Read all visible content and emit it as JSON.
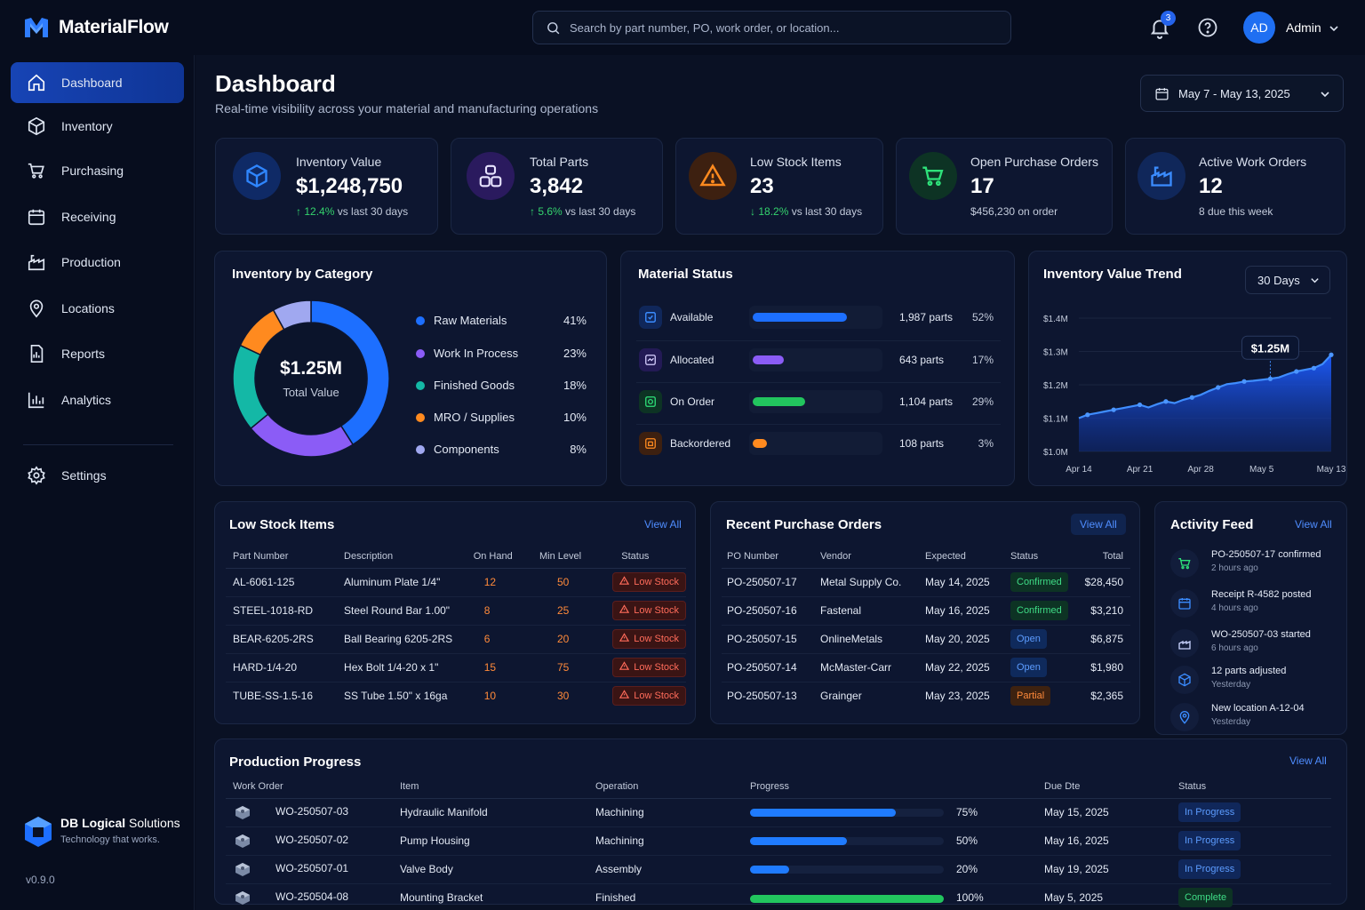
{
  "app": {
    "name": "MaterialFlow"
  },
  "search": {
    "placeholder": "Search by part number, PO, work order, or location..."
  },
  "header": {
    "notifications": "3",
    "avatar_initials": "AD",
    "user_name": "Admin"
  },
  "sidebar": {
    "items": [
      {
        "label": "Dashboard",
        "icon": "home-icon"
      },
      {
        "label": "Inventory",
        "icon": "box-icon"
      },
      {
        "label": "Purchasing",
        "icon": "cart-icon"
      },
      {
        "label": "Receiving",
        "icon": "calendar-icon"
      },
      {
        "label": "Production",
        "icon": "factory-icon"
      },
      {
        "label": "Locations",
        "icon": "pin-icon"
      },
      {
        "label": "Reports",
        "icon": "report-icon"
      },
      {
        "label": "Analytics",
        "icon": "bar-chart-icon"
      },
      {
        "label": "Settings",
        "icon": "gear-icon"
      }
    ],
    "company_name_bold": "DB Logical",
    "company_name_rest": " Solutions",
    "company_tagline": "Technology that works.",
    "version": "v0.9.0"
  },
  "page": {
    "title": "Dashboard",
    "subtitle": "Real-time visibility across your material and manufacturing operations",
    "date_range": "May 7 - May 13, 2025"
  },
  "kpis": [
    {
      "label": "Inventory Value",
      "value": "$1,248,750",
      "delta": "12.4%",
      "delta_text": " vs last 30 days",
      "color": "#1d6fff"
    },
    {
      "label": "Total Parts",
      "value": "3,842",
      "delta": "5.6%",
      "delta_text": " vs last 30 days",
      "color": "#8b5cf6"
    },
    {
      "label": "Low Stock Items",
      "value": "23",
      "delta": "18.2%",
      "delta_text": " vs last 30 days",
      "color": "#ff8a1f"
    },
    {
      "label": "Open Purchase Orders",
      "value": "17",
      "sub": "$456,230 on order",
      "color": "#22c55e"
    },
    {
      "label": "Active Work Orders",
      "value": "12",
      "sub": "8 due this week",
      "color": "#3b82f6"
    }
  ],
  "category": {
    "title": "Inventory by Category",
    "center_value": "$1.25M",
    "center_label": "Total Value",
    "items": [
      {
        "label": "Raw Materials",
        "pct": "41%",
        "value": 41,
        "color": "#1d6fff"
      },
      {
        "label": "Work In Process",
        "pct": "23%",
        "value": 23,
        "color": "#8b5cf6"
      },
      {
        "label": "Finished Goods",
        "pct": "18%",
        "value": 18,
        "color": "#14b8a6"
      },
      {
        "label": "MRO / Supplies",
        "pct": "10%",
        "value": 10,
        "color": "#ff8a1f"
      },
      {
        "label": "Components",
        "pct": "8%",
        "value": 8,
        "color": "#a0a8f0"
      }
    ]
  },
  "material_status": {
    "title": "Material Status",
    "rows": [
      {
        "label": "Available",
        "count": "1,987 parts",
        "pct": "52%",
        "fraction": 0.52,
        "color": "#1d6fff"
      },
      {
        "label": "Allocated",
        "count": "643 parts",
        "pct": "17%",
        "fraction": 0.17,
        "color": "#8b5cf6"
      },
      {
        "label": "On Order",
        "count": "1,104 parts",
        "pct": "29%",
        "fraction": 0.29,
        "color": "#22c55e"
      },
      {
        "label": "Backordered",
        "count": "108 parts",
        "pct": "3%",
        "fraction": 0.03,
        "color": "#ff8a1f"
      }
    ]
  },
  "trend": {
    "title": "Inventory Value Trend",
    "range": "30 Days",
    "callout": "$1.25M"
  },
  "chart_data": {
    "type": "area",
    "x": [
      "Apr 14",
      "Apr 15",
      "Apr 16",
      "Apr 17",
      "Apr 18",
      "Apr 19",
      "Apr 20",
      "Apr 21",
      "Apr 22",
      "Apr 23",
      "Apr 24",
      "Apr 25",
      "Apr 26",
      "Apr 27",
      "Apr 28",
      "Apr 29",
      "Apr 30",
      "May 1",
      "May 2",
      "May 3",
      "May 4",
      "May 5",
      "May 6",
      "May 7",
      "May 8",
      "May 9",
      "May 10",
      "May 11",
      "May 12",
      "May 13"
    ],
    "series": [
      {
        "values": [
          1.1,
          1.11,
          1.115,
          1.12,
          1.125,
          1.13,
          1.135,
          1.14,
          1.132,
          1.142,
          1.15,
          1.145,
          1.155,
          1.162,
          1.17,
          1.182,
          1.192,
          1.202,
          1.205,
          1.21,
          1.212,
          1.215,
          1.218,
          1.222,
          1.232,
          1.24,
          1.245,
          1.25,
          1.262,
          1.29
        ]
      }
    ],
    "xticks": [
      "Apr 14",
      "Apr 21",
      "Apr 28",
      "May 5",
      "May 13"
    ],
    "yticks": [
      "$1.0M",
      "$1.1M",
      "$1.2M",
      "$1.3M",
      "$1.4M"
    ],
    "ylim": [
      1.0,
      1.4
    ],
    "highlight_points": [
      "Apr 15",
      "Apr 18",
      "Apr 21",
      "Apr 24",
      "Apr 27",
      "Apr 30",
      "May 3",
      "May 6",
      "May 9",
      "May 11",
      "May 13"
    ]
  },
  "low_stock": {
    "title": "Low Stock Items",
    "view_all": "View All",
    "columns": [
      "Part Number",
      "Description",
      "On Hand",
      "Min Level",
      "Status"
    ],
    "rows": [
      {
        "part": "AL-6061-125",
        "desc": "Aluminum Plate 1/4\"",
        "on_hand": "12",
        "min": "50",
        "status": "Low Stock"
      },
      {
        "part": "STEEL-1018-RD",
        "desc": "Steel Round Bar 1.00\"",
        "on_hand": "8",
        "min": "25",
        "status": "Low Stock"
      },
      {
        "part": "BEAR-6205-2RS",
        "desc": "Ball Bearing 6205-2RS",
        "on_hand": "6",
        "min": "20",
        "status": "Low Stock"
      },
      {
        "part": "HARD-1/4-20",
        "desc": "Hex Bolt 1/4-20 x 1\"",
        "on_hand": "15",
        "min": "75",
        "status": "Low Stock"
      },
      {
        "part": "TUBE-SS-1.5-16",
        "desc": "SS Tube 1.50\" x 16ga",
        "on_hand": "10",
        "min": "30",
        "status": "Low Stock"
      }
    ]
  },
  "purchase_orders": {
    "title": "Recent Purchase Orders",
    "view_all": "View All",
    "columns": [
      "PO Number",
      "Vendor",
      "Expected",
      "Status",
      "Total"
    ],
    "rows": [
      {
        "po": "PO-250507-17",
        "vendor": "Metal Supply Co.",
        "expected": "May 14, 2025",
        "status": "Confirmed",
        "total": "$28,450"
      },
      {
        "po": "PO-250507-16",
        "vendor": "Fastenal",
        "expected": "May 16, 2025",
        "status": "Confirmed",
        "total": "$3,210"
      },
      {
        "po": "PO-250507-15",
        "vendor": "OnlineMetals",
        "expected": "May 20, 2025",
        "status": "Open",
        "total": "$6,875"
      },
      {
        "po": "PO-250507-14",
        "vendor": "McMaster-Carr",
        "expected": "May 22, 2025",
        "status": "Open",
        "total": "$1,980"
      },
      {
        "po": "PO-250507-13",
        "vendor": "Grainger",
        "expected": "May 23, 2025",
        "status": "Partial",
        "total": "$2,365"
      }
    ]
  },
  "activity": {
    "title": "Activity Feed",
    "view_all": "View All",
    "items": [
      {
        "title": "PO-250507-17 confirmed",
        "time": "2 hours ago",
        "icon": "cart-icon"
      },
      {
        "title": "Receipt R-4582 posted",
        "time": "4 hours ago",
        "icon": "calendar-icon"
      },
      {
        "title": "WO-250507-03 started",
        "time": "6 hours ago",
        "icon": "factory-icon"
      },
      {
        "title": "12 parts adjusted",
        "time": "Yesterday",
        "icon": "box-icon"
      },
      {
        "title": "New location A-12-04",
        "time": "Yesterday",
        "icon": "pin-icon"
      }
    ]
  },
  "production": {
    "title": "Production Progress",
    "view_all": "View All",
    "columns": [
      "Work Order",
      "Item",
      "Operation",
      "Progress",
      "Due Dte",
      "Status"
    ],
    "rows": [
      {
        "wo": "WO-250507-03",
        "item": "Hydraulic Manifold",
        "operation": "Machining",
        "progress": "75%",
        "fraction": 0.75,
        "due": "May 15, 2025",
        "status": "In Progress"
      },
      {
        "wo": "WO-250507-02",
        "item": "Pump Housing",
        "operation": "Machining",
        "progress": "50%",
        "fraction": 0.5,
        "due": "May 16, 2025",
        "status": "In Progress"
      },
      {
        "wo": "WO-250507-01",
        "item": "Valve Body",
        "operation": "Assembly",
        "progress": "20%",
        "fraction": 0.2,
        "due": "May 19, 2025",
        "status": "In Progress"
      },
      {
        "wo": "WO-250504-08",
        "item": "Mounting Bracket",
        "operation": "Finished",
        "progress": "100%",
        "fraction": 1.0,
        "due": "May 5, 2025",
        "status": "Complete"
      }
    ]
  }
}
